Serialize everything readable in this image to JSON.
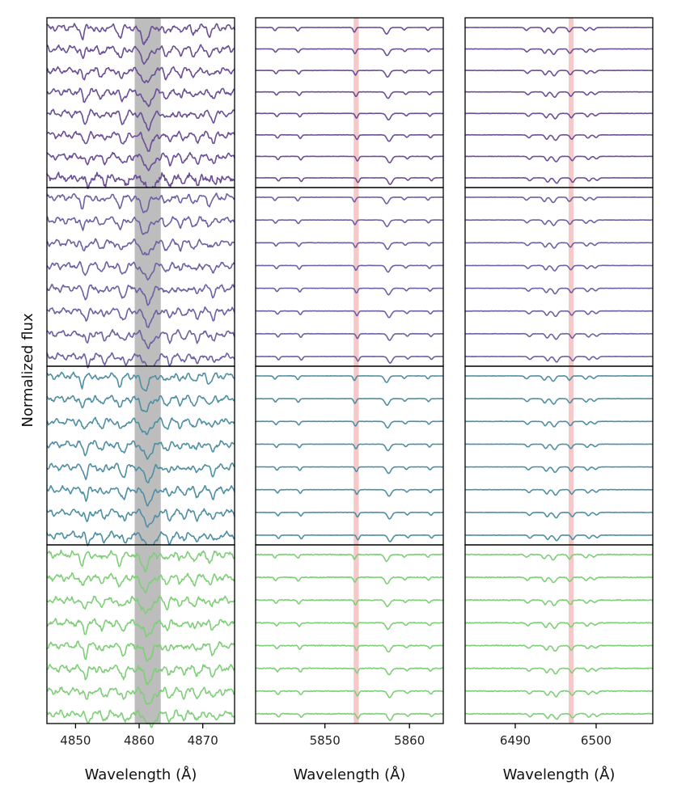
{
  "chart_data": {
    "type": "line",
    "ylabel": "Normalized flux",
    "rows": 4,
    "spectra_per_panel": 8,
    "row_colors": [
      "#6b4f96",
      "#6a62a3",
      "#4f8fa4",
      "#7fcf78"
    ],
    "columns": [
      {
        "xlabel": "Wavelength (Å)",
        "xlim": [
          4845.5,
          4875
        ],
        "xticks": [
          4850,
          4860,
          4870
        ],
        "highlight": {
          "range": [
            4859.3,
            4863.4
          ],
          "color": "#bdbdbd"
        },
        "lines": [
          {
            "center": 4851.5,
            "depth": 0.9,
            "width": 0.25
          },
          {
            "center": 4854.2,
            "depth": 0.45,
            "width": 0.3
          },
          {
            "center": 4857.4,
            "depth": 0.75,
            "width": 0.35
          },
          {
            "center": 4861.3,
            "depth": 1.2,
            "width": 0.6
          },
          {
            "center": 4864.5,
            "depth": 0.55,
            "width": 0.3
          },
          {
            "center": 4866.7,
            "depth": 0.4,
            "width": 0.25
          },
          {
            "center": 4868.9,
            "depth": 0.5,
            "width": 0.3
          },
          {
            "center": 4871.5,
            "depth": 0.6,
            "width": 0.3
          }
        ]
      },
      {
        "xlabel": "Wavelength (Å)",
        "xlim": [
          5841.8,
          5864
        ],
        "xticks": [
          5850,
          5860
        ],
        "highlight": {
          "range": [
            5853.4,
            5854.0
          ],
          "color": "#f4b6b6"
        },
        "lines": [
          {
            "center": 5844.3,
            "depth": 0.45,
            "width": 0.15
          },
          {
            "center": 5847.0,
            "depth": 0.5,
            "width": 0.15
          },
          {
            "center": 5853.7,
            "depth": 0.65,
            "width": 0.15
          },
          {
            "center": 5857.5,
            "depth": 0.9,
            "width": 0.25
          },
          {
            "center": 5859.6,
            "depth": 0.35,
            "width": 0.15
          },
          {
            "center": 5862.4,
            "depth": 0.4,
            "width": 0.15
          }
        ]
      },
      {
        "xlabel": "Wavelength (Å)",
        "xlim": [
          6483.8,
          6507
        ],
        "xticks": [
          6490,
          6500
        ],
        "highlight": {
          "range": [
            6496.6,
            6497.2
          ],
          "color": "#f4b6b6"
        },
        "lines": [
          {
            "center": 6491.6,
            "depth": 0.4,
            "width": 0.2
          },
          {
            "center": 6493.8,
            "depth": 0.6,
            "width": 0.2
          },
          {
            "center": 6494.9,
            "depth": 0.75,
            "width": 0.25
          },
          {
            "center": 6496.9,
            "depth": 0.6,
            "width": 0.2
          },
          {
            "center": 6498.9,
            "depth": 0.45,
            "width": 0.2
          },
          {
            "center": 6499.9,
            "depth": 0.35,
            "width": 0.2
          }
        ]
      }
    ]
  }
}
